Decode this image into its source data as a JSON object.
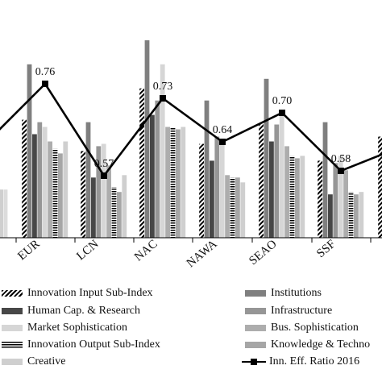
{
  "chart_data": {
    "type": "bar",
    "categories": [
      "",
      "EUR",
      "LCN",
      "NAC",
      "NAWA",
      "SEAO",
      "SSF",
      ""
    ],
    "series": [
      {
        "name": "Innovation Input Sub-Index",
        "values": [
          null,
          49,
          36,
          62,
          39,
          48,
          32,
          42
        ]
      },
      {
        "name": "Institutions",
        "values": [
          null,
          72,
          48,
          82,
          57,
          66,
          48,
          58
        ]
      },
      {
        "name": "Human Cap. & Research",
        "values": [
          null,
          43,
          25,
          51,
          32,
          40,
          18,
          32
        ]
      },
      {
        "name": "Infrastructure",
        "values": [
          null,
          48,
          38,
          57,
          42,
          47,
          31,
          40
        ]
      },
      {
        "name": "Market Sophistication",
        "values": [
          null,
          46,
          39,
          72,
          41,
          51,
          34,
          44
        ]
      },
      {
        "name": "Bus. Sophistication",
        "values": [
          null,
          40,
          30,
          46,
          26,
          38,
          28,
          37
        ]
      },
      {
        "name": "Innovation Output Sub-Index",
        "values": [
          null,
          37,
          21,
          46,
          25,
          34,
          19,
          33
        ]
      },
      {
        "name": "Knowledge & Technology Outputs",
        "values": [
          null,
          35,
          19,
          45,
          25,
          33,
          18,
          30
        ]
      },
      {
        "name": "Creative",
        "values": [
          null,
          40,
          26,
          46,
          23,
          34,
          19,
          35
        ]
      }
    ],
    "unlabeled_leading_bars": [
      20,
      20
    ],
    "line": {
      "name": "Inn. Eff. Ratio 2016",
      "values": [
        0.63,
        0.76,
        0.57,
        0.73,
        0.64,
        0.7,
        0.58,
        0.63
      ],
      "labels": [
        "",
        "0.76",
        "0.57",
        "0.73",
        "0.64",
        "0.70",
        "0.58",
        ""
      ]
    },
    "ylim": [
      0,
      86
    ],
    "line_ylim": [
      0.4,
      0.9
    ],
    "grid": false,
    "legend_position": "bottom",
    "colors": {
      "Institutions": "#7f7f7f",
      "Human Cap. & Research": "#474747",
      "Infrastructure": "#969696",
      "Market Sophistication": "#d6d6d6",
      "Bus. Sophistication": "#adadad",
      "Knowledge & Technology Outputs": "#a6a6a6",
      "Creative": "#cfcfcf",
      "line": "#000000"
    }
  },
  "legend": {
    "items": [
      {
        "label": "Innovation Input Sub-Index",
        "style": "hatch"
      },
      {
        "label": "Institutions",
        "style": "solid",
        "color": "#7f7f7f"
      },
      {
        "label": "Human Cap. & Research",
        "style": "solid",
        "color": "#474747"
      },
      {
        "label": "Infrastructure",
        "style": "solid",
        "color": "#969696"
      },
      {
        "label": "Market Sophistication",
        "style": "solid",
        "color": "#d6d6d6"
      },
      {
        "label": "Bus. Sophistication",
        "style": "solid",
        "color": "#adadad"
      },
      {
        "label": "Innovation Output Sub-Index",
        "style": "hstripe"
      },
      {
        "label": "Knowledge & Techno",
        "style": "solid",
        "color": "#a6a6a6"
      },
      {
        "label": "Creative",
        "style": "solid",
        "color": "#cfcfcf"
      },
      {
        "label": "Inn. Eff. Ratio 2016",
        "style": "line"
      }
    ]
  }
}
